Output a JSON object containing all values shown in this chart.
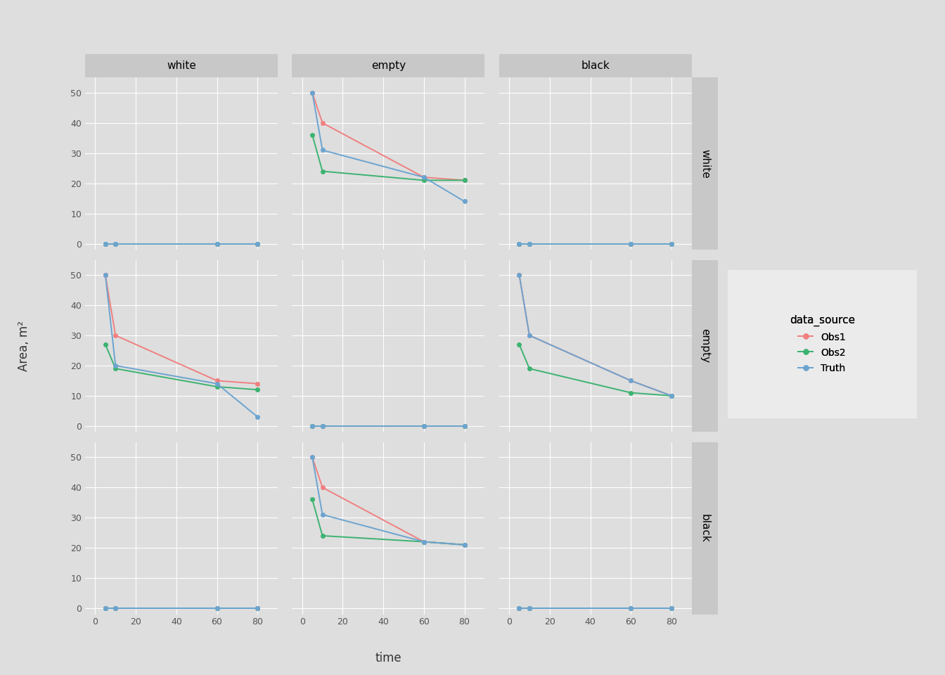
{
  "col_labels": [
    "white",
    "empty",
    "black"
  ],
  "row_labels": [
    "white",
    "empty",
    "black"
  ],
  "time_points": [
    5,
    10,
    60,
    80
  ],
  "sources": [
    "Obs1",
    "Obs2",
    "Truth"
  ],
  "colors": [
    "#F08080",
    "#3CB371",
    "#6CA4D0"
  ],
  "data": {
    "white": {
      "white": {
        "Obs1": [
          0,
          0,
          0,
          0
        ],
        "Obs2": [
          0,
          0,
          0,
          0
        ],
        "Truth": [
          0,
          0,
          0,
          0
        ]
      },
      "empty": {
        "Obs1": [
          50,
          40,
          22,
          21
        ],
        "Obs2": [
          36,
          24,
          21,
          21
        ],
        "Truth": [
          50,
          31,
          22,
          14
        ]
      },
      "black": {
        "Obs1": [
          0,
          0,
          0,
          0
        ],
        "Obs2": [
          0,
          0,
          0,
          0
        ],
        "Truth": [
          0,
          0,
          0,
          0
        ]
      }
    },
    "empty": {
      "white": {
        "Obs1": [
          50,
          30,
          15,
          14
        ],
        "Obs2": [
          27,
          19,
          13,
          12
        ],
        "Truth": [
          50,
          20,
          14,
          3
        ]
      },
      "empty": {
        "Obs1": [
          0,
          0,
          0,
          0
        ],
        "Obs2": [
          0,
          0,
          0,
          0
        ],
        "Truth": [
          0,
          0,
          0,
          0
        ]
      },
      "black": {
        "Obs1": [
          50,
          30,
          15,
          10
        ],
        "Obs2": [
          27,
          19,
          11,
          10
        ],
        "Truth": [
          50,
          30,
          15,
          10
        ]
      }
    },
    "black": {
      "white": {
        "Obs1": [
          0,
          0,
          0,
          0
        ],
        "Obs2": [
          0,
          0,
          0,
          0
        ],
        "Truth": [
          0,
          0,
          0,
          0
        ]
      },
      "empty": {
        "Obs1": [
          50,
          40,
          22,
          21
        ],
        "Obs2": [
          36,
          24,
          22,
          21
        ],
        "Truth": [
          50,
          31,
          22,
          21
        ]
      },
      "black": {
        "Obs1": [
          0,
          0,
          0,
          0
        ],
        "Obs2": [
          0,
          0,
          0,
          0
        ],
        "Truth": [
          0,
          0,
          0,
          0
        ]
      }
    }
  },
  "ylim": [
    -2,
    55
  ],
  "yticks": [
    0,
    10,
    20,
    30,
    40,
    50
  ],
  "xticks": [
    0,
    20,
    40,
    60,
    80
  ],
  "xlabel": "time",
  "ylabel": "Area, m²",
  "panel_bg": "#DEDEDE",
  "outer_bg": "#DEDEDE",
  "grid_color": "#FFFFFF",
  "strip_bg": "#C8C8C8",
  "strip_text_color": "#000000",
  "axis_text_color": "#555555",
  "title_fontsize": 11,
  "axis_fontsize": 9,
  "label_fontsize": 12,
  "legend_title": "data_source"
}
